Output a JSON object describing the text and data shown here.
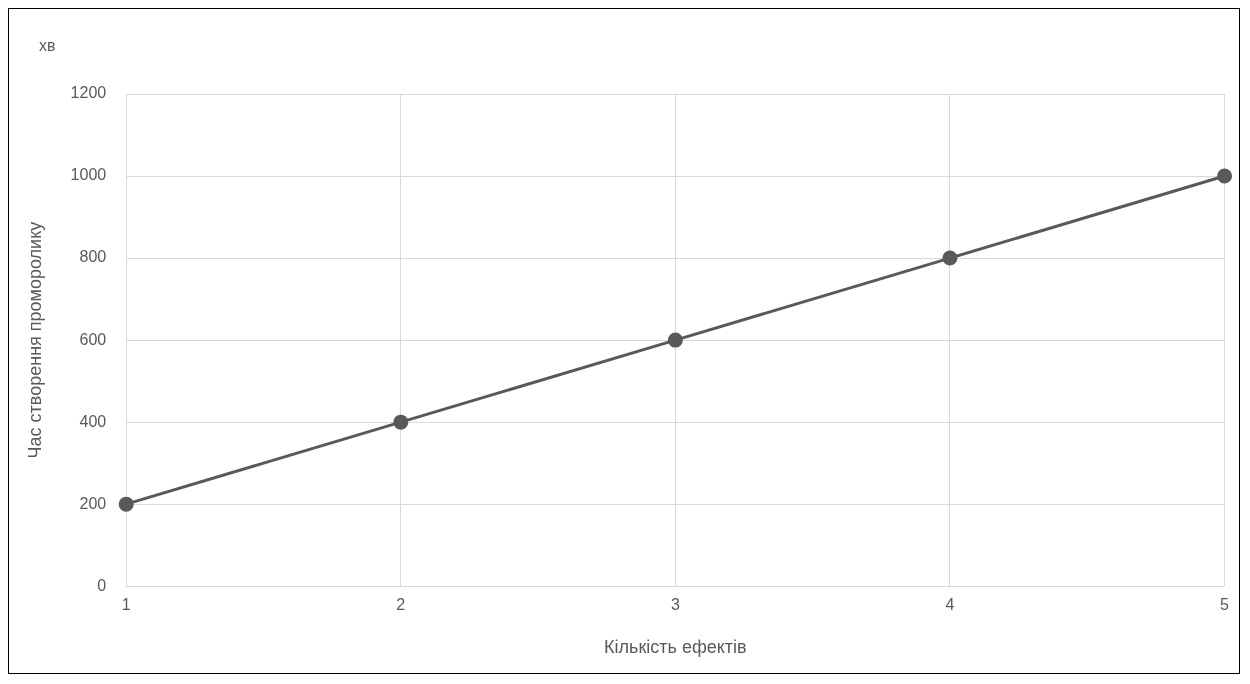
{
  "chart_data": {
    "type": "line",
    "xlabel": "Кількість ефектів",
    "ylabel": "Час створення проморолику",
    "annotations": [
      "хв"
    ],
    "x": [
      1,
      2,
      3,
      4,
      5
    ],
    "series": [
      {
        "color": "#595959",
        "values": [
          200,
          400,
          600,
          800,
          1000
        ]
      }
    ],
    "xlim": [
      1,
      5
    ],
    "xticks": [
      1,
      2,
      3,
      4,
      5
    ],
    "ylim": [
      0,
      1200
    ],
    "yticks": [
      0,
      200,
      400,
      600,
      800,
      1000,
      1200
    ],
    "grid": true,
    "legend": false,
    "marker": "circle",
    "line_style": "solid"
  }
}
